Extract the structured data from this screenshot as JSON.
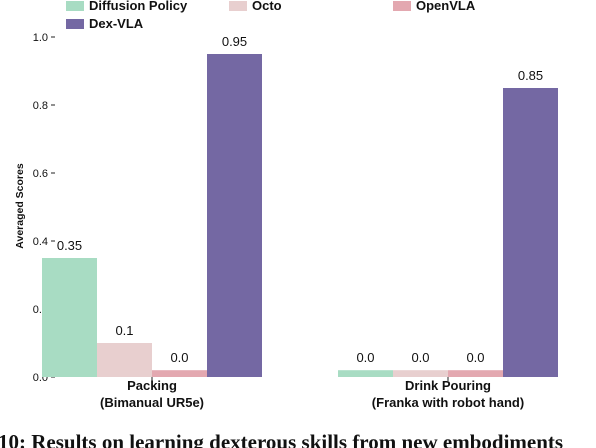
{
  "chart_data": {
    "type": "bar",
    "categories": [
      [
        "Packing",
        "(Bimanual UR5e)"
      ],
      [
        "Drink Pouring",
        "(Franka with robot hand)"
      ]
    ],
    "series": [
      {
        "name": "Diffusion Policy",
        "color": "#a8dcc3",
        "values": [
          0.35,
          0.02
        ],
        "labels": [
          "0.35",
          "0.0"
        ]
      },
      {
        "name": "Octo",
        "color": "#e8cfcf",
        "values": [
          0.1,
          0.02
        ],
        "labels": [
          "0.1",
          "0.0"
        ]
      },
      {
        "name": "OpenVLA",
        "color": "#e3a8b0",
        "values": [
          0.02,
          0.02
        ],
        "labels": [
          "0.0",
          "0.0"
        ]
      },
      {
        "name": "Dex-VLA",
        "color": "#7468a3",
        "values": [
          0.95,
          0.85
        ],
        "labels": [
          "0.95",
          "0.85"
        ]
      }
    ],
    "ylabel": "Averaged Scores",
    "xlabel": "",
    "ylim": [
      0,
      1.0
    ],
    "yticks": [
      "0.0",
      "0.2",
      "0.4",
      "0.6",
      "0.8",
      "1.0"
    ],
    "legend_position": "top",
    "grid": false
  },
  "caption": "10: Results on learning dexterous skills from new embodiments"
}
